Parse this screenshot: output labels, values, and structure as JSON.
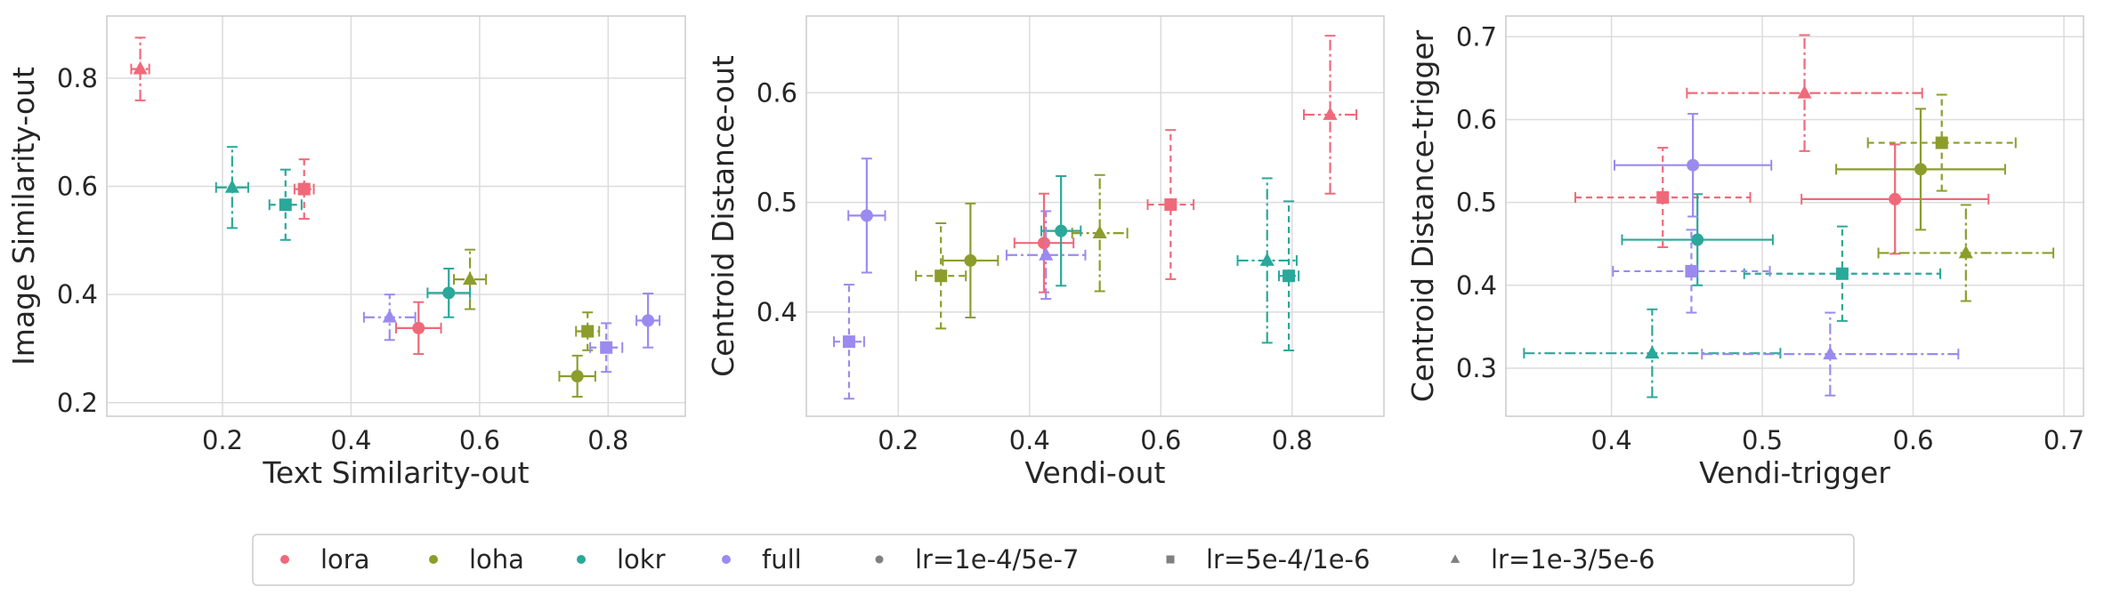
{
  "colors": {
    "lora": "#f0697a",
    "loha": "#8c9d2c",
    "lokr": "#2aa89a",
    "full": "#9b8af0",
    "lr": "#808080"
  },
  "legend": [
    {
      "label": "lora",
      "kind": "method",
      "key": "lora"
    },
    {
      "label": "loha",
      "kind": "method",
      "key": "loha"
    },
    {
      "label": "lokr",
      "kind": "method",
      "key": "lokr"
    },
    {
      "label": "full",
      "kind": "method",
      "key": "full"
    },
    {
      "label": "lr=1e-4/5e-7",
      "kind": "lr",
      "marker": "circle"
    },
    {
      "label": "lr=5e-4/1e-6",
      "kind": "lr",
      "marker": "square"
    },
    {
      "label": "lr=1e-3/5e-6",
      "kind": "lr",
      "marker": "triangle"
    }
  ],
  "chart_data": [
    {
      "type": "scatter",
      "xlabel": "Text Similarity-out",
      "ylabel": "Image Similarity-out",
      "xlim": [
        0.02,
        0.92
      ],
      "ylim": [
        0.175,
        0.915
      ],
      "xticks": [
        "0.2",
        "0.4",
        "0.6",
        "0.8"
      ],
      "yticks": [
        "0.2",
        "0.4",
        "0.6",
        "0.8"
      ],
      "grid": true,
      "points": [
        {
          "method": "lora",
          "lr": "lr=1e-4/5e-7",
          "x": 0.505,
          "y": 0.338,
          "xerr": 0.035,
          "yerr": 0.048
        },
        {
          "method": "lora",
          "lr": "lr=5e-4/1e-6",
          "x": 0.327,
          "y": 0.595,
          "xerr": 0.015,
          "yerr": 0.055
        },
        {
          "method": "lora",
          "lr": "lr=1e-3/5e-6",
          "x": 0.072,
          "y": 0.817,
          "xerr": 0.014,
          "yerr": 0.058
        },
        {
          "method": "loha",
          "lr": "lr=1e-4/5e-7",
          "x": 0.752,
          "y": 0.249,
          "xerr": 0.028,
          "yerr": 0.038
        },
        {
          "method": "loha",
          "lr": "lr=5e-4/1e-6",
          "x": 0.768,
          "y": 0.332,
          "xerr": 0.018,
          "yerr": 0.035
        },
        {
          "method": "loha",
          "lr": "lr=1e-3/5e-6",
          "x": 0.585,
          "y": 0.428,
          "xerr": 0.025,
          "yerr": 0.055
        },
        {
          "method": "lokr",
          "lr": "lr=1e-4/5e-7",
          "x": 0.552,
          "y": 0.403,
          "xerr": 0.033,
          "yerr": 0.045
        },
        {
          "method": "lokr",
          "lr": "lr=5e-4/1e-6",
          "x": 0.298,
          "y": 0.566,
          "xerr": 0.025,
          "yerr": 0.065
        },
        {
          "method": "lokr",
          "lr": "lr=1e-3/5e-6",
          "x": 0.215,
          "y": 0.598,
          "xerr": 0.025,
          "yerr": 0.075
        },
        {
          "method": "full",
          "lr": "lr=1e-4/5e-7",
          "x": 0.862,
          "y": 0.352,
          "xerr": 0.018,
          "yerr": 0.05
        },
        {
          "method": "full",
          "lr": "lr=5e-4/1e-6",
          "x": 0.797,
          "y": 0.302,
          "xerr": 0.025,
          "yerr": 0.045
        },
        {
          "method": "full",
          "lr": "lr=1e-3/5e-6",
          "x": 0.46,
          "y": 0.358,
          "xerr": 0.04,
          "yerr": 0.042
        }
      ]
    },
    {
      "type": "scatter",
      "xlabel": "Vendi-out",
      "ylabel": "Centroid Distance-out",
      "xlim": [
        0.06,
        0.94
      ],
      "ylim": [
        0.305,
        0.67
      ],
      "xticks": [
        "0.2",
        "0.4",
        "0.6",
        "0.8"
      ],
      "yticks": [
        "0.4",
        "0.5",
        "0.6"
      ],
      "grid": true,
      "points": [
        {
          "method": "lora",
          "lr": "lr=1e-4/5e-7",
          "x": 0.422,
          "y": 0.463,
          "xerr": 0.045,
          "yerr": 0.045
        },
        {
          "method": "lora",
          "lr": "lr=5e-4/1e-6",
          "x": 0.615,
          "y": 0.498,
          "xerr": 0.035,
          "yerr": 0.068
        },
        {
          "method": "lora",
          "lr": "lr=1e-3/5e-6",
          "x": 0.858,
          "y": 0.58,
          "xerr": 0.04,
          "yerr": 0.072
        },
        {
          "method": "loha",
          "lr": "lr=1e-4/5e-7",
          "x": 0.31,
          "y": 0.447,
          "xerr": 0.042,
          "yerr": 0.052
        },
        {
          "method": "loha",
          "lr": "lr=5e-4/1e-6",
          "x": 0.265,
          "y": 0.433,
          "xerr": 0.038,
          "yerr": 0.048
        },
        {
          "method": "loha",
          "lr": "lr=1e-3/5e-6",
          "x": 0.507,
          "y": 0.472,
          "xerr": 0.042,
          "yerr": 0.053
        },
        {
          "method": "lokr",
          "lr": "lr=1e-4/5e-7",
          "x": 0.448,
          "y": 0.474,
          "xerr": 0.03,
          "yerr": 0.05
        },
        {
          "method": "lokr",
          "lr": "lr=5e-4/1e-6",
          "x": 0.795,
          "y": 0.433,
          "xerr": 0.015,
          "yerr": 0.068
        },
        {
          "method": "lokr",
          "lr": "lr=1e-3/5e-6",
          "x": 0.762,
          "y": 0.447,
          "xerr": 0.045,
          "yerr": 0.075
        },
        {
          "method": "full",
          "lr": "lr=1e-4/5e-7",
          "x": 0.152,
          "y": 0.488,
          "xerr": 0.028,
          "yerr": 0.052
        },
        {
          "method": "full",
          "lr": "lr=5e-4/1e-6",
          "x": 0.125,
          "y": 0.373,
          "xerr": 0.023,
          "yerr": 0.052
        },
        {
          "method": "full",
          "lr": "lr=1e-3/5e-6",
          "x": 0.425,
          "y": 0.452,
          "xerr": 0.06,
          "yerr": 0.04
        }
      ]
    },
    {
      "type": "scatter",
      "xlabel": "Vendi-trigger",
      "ylabel": "Centroid Distance-trigger",
      "xlim": [
        0.33,
        0.713
      ],
      "ylim": [
        0.242,
        0.725
      ],
      "xticks": [
        "0.4",
        "0.5",
        "0.6",
        "0.7"
      ],
      "yticks": [
        "0.3",
        "0.4",
        "0.5",
        "0.6",
        "0.7"
      ],
      "grid": true,
      "points": [
        {
          "method": "lora",
          "lr": "lr=1e-4/5e-7",
          "x": 0.588,
          "y": 0.504,
          "xerr": 0.062,
          "yerr": 0.066
        },
        {
          "method": "lora",
          "lr": "lr=5e-4/1e-6",
          "x": 0.434,
          "y": 0.506,
          "xerr": 0.058,
          "yerr": 0.06
        },
        {
          "method": "lora",
          "lr": "lr=1e-3/5e-6",
          "x": 0.528,
          "y": 0.632,
          "xerr": 0.078,
          "yerr": 0.07
        },
        {
          "method": "loha",
          "lr": "lr=1e-4/5e-7",
          "x": 0.605,
          "y": 0.54,
          "xerr": 0.056,
          "yerr": 0.073
        },
        {
          "method": "loha",
          "lr": "lr=5e-4/1e-6",
          "x": 0.619,
          "y": 0.572,
          "xerr": 0.049,
          "yerr": 0.058
        },
        {
          "method": "loha",
          "lr": "lr=1e-3/5e-6",
          "x": 0.635,
          "y": 0.439,
          "xerr": 0.058,
          "yerr": 0.058
        },
        {
          "method": "lokr",
          "lr": "lr=1e-4/5e-7",
          "x": 0.457,
          "y": 0.455,
          "xerr": 0.05,
          "yerr": 0.055
        },
        {
          "method": "lokr",
          "lr": "lr=5e-4/1e-6",
          "x": 0.553,
          "y": 0.414,
          "xerr": 0.065,
          "yerr": 0.057
        },
        {
          "method": "lokr",
          "lr": "lr=1e-3/5e-6",
          "x": 0.427,
          "y": 0.318,
          "xerr": 0.085,
          "yerr": 0.053
        },
        {
          "method": "full",
          "lr": "lr=1e-4/5e-7",
          "x": 0.454,
          "y": 0.545,
          "xerr": 0.052,
          "yerr": 0.062
        },
        {
          "method": "full",
          "lr": "lr=5e-4/1e-6",
          "x": 0.453,
          "y": 0.417,
          "xerr": 0.052,
          "yerr": 0.05
        },
        {
          "method": "full",
          "lr": "lr=1e-3/5e-6",
          "x": 0.545,
          "y": 0.317,
          "xerr": 0.085,
          "yerr": 0.05
        }
      ]
    }
  ]
}
